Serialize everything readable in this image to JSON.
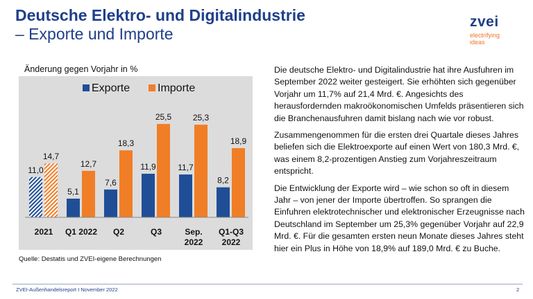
{
  "header": {
    "title_line1": "Deutsche Elektro- und Digitalindustrie",
    "title_line2": "– Exporte und Importe"
  },
  "logo": {
    "brand": "zvei",
    "tagline": "electrifying ideas"
  },
  "chart_subtitle": "Änderung gegen Vorjahr in %",
  "chart_data": {
    "type": "bar",
    "ylabel": "Änderung gegen Vorjahr in %",
    "categories": [
      "2021",
      "Q1 2022",
      "Q2",
      "Q3",
      "Sep. 2022",
      "Q1-Q3 2022"
    ],
    "category_lines": [
      [
        "2021"
      ],
      [
        "Q1 2022"
      ],
      [
        "Q2"
      ],
      [
        "Q3"
      ],
      [
        "Sep.",
        "2022"
      ],
      [
        "Q1-Q3",
        "2022"
      ]
    ],
    "series": [
      {
        "name": "Exporte",
        "values": [
          11.0,
          5.1,
          7.6,
          11.9,
          11.7,
          8.2
        ],
        "labels": [
          "11,0",
          "5,1",
          "7,6",
          "11,9",
          "11,7",
          "8,2"
        ],
        "color": "#1f4e97"
      },
      {
        "name": "Importe",
        "values": [
          14.7,
          12.7,
          18.3,
          25.5,
          25.3,
          18.9
        ],
        "labels": [
          "14,7",
          "12,7",
          "18,3",
          "25,5",
          "25,3",
          "18,9"
        ],
        "color": "#f07e26"
      }
    ],
    "hatched_categories": [
      "2021"
    ],
    "ylim": [
      0,
      31
    ],
    "legend_position": "top",
    "grid": false
  },
  "source": "Quelle: Destatis und ZVEI-eigene Berechnungen",
  "body_paragraphs": [
    "Die deutsche Elektro- und Digitalindustrie hat ihre Ausfuhren im September 2022 weiter gesteigert. Sie erhöhten sich gegenüber Vorjahr um 11,7% auf 21,4 Mrd. €. Angesichts des herausfordernden makroökonomischen Umfelds präsentieren sich die Branchenausfuhren damit bislang nach wie vor robust.",
    "Zusammengenommen für die ersten drei Quartale dieses Jahres beliefen sich die Elektroexporte auf einen Wert von 180,3 Mrd. €, was einem 8,2-prozentigen Anstieg zum Vorjahreszeitraum entspricht.",
    "Die Entwicklung der Exporte wird – wie schon so oft in diesem Jahr – von jener der Importe übertroffen. So sprangen die Einfuhren elektrotechnischer und elektronischer Erzeugnisse nach Deutschland im September um 25,3% gegenüber Vorjahr auf 22,9 Mrd. €. Für die gesamten ersten neun Monate dieses Jahres steht hier ein Plus in Höhe von 18,9% auf 189,0 Mrd. € zu Buche."
  ],
  "footer": {
    "left": "ZVEI-Außenhandelsreport I November 2022",
    "page": "2"
  }
}
